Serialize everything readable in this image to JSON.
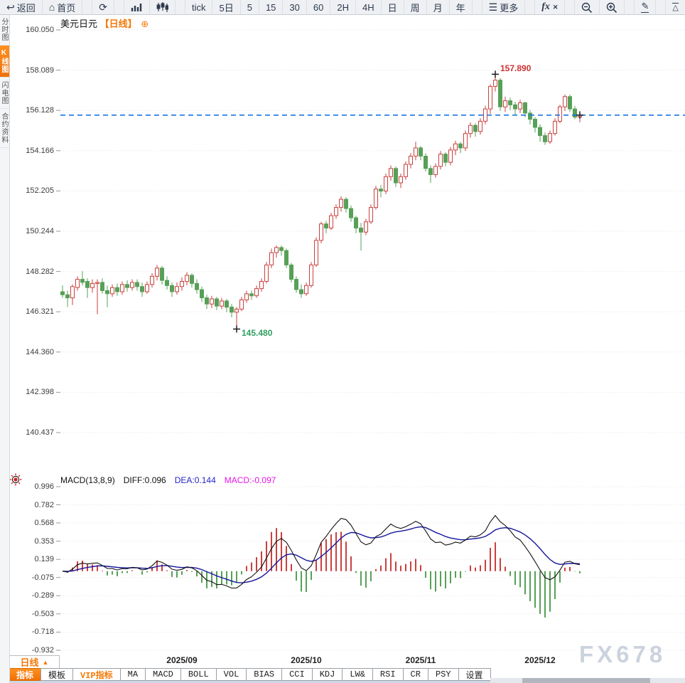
{
  "toolbar": {
    "groups": [
      {
        "items": [
          {
            "name": "back-button",
            "icon": "back-icon",
            "glyph": "↩",
            "label": "返回"
          },
          {
            "name": "home-button",
            "icon": "home-icon",
            "glyph": "⌂",
            "label": "首页"
          }
        ]
      },
      {
        "items": [
          {
            "name": "refresh-button",
            "icon": "refresh-icon",
            "glyph": "⟳",
            "label": ""
          }
        ]
      },
      {
        "items": [
          {
            "name": "line-chart-button",
            "icon": "bar-chart-icon",
            "svg": "bars",
            "label": ""
          },
          {
            "name": "candlestick-button",
            "icon": "candlestick-icon",
            "svg": "candles",
            "label": ""
          }
        ]
      },
      {
        "items": [
          {
            "name": "period-tick-button",
            "label": "tick"
          },
          {
            "name": "period-5d-button",
            "label": "5日"
          },
          {
            "name": "period-5-button",
            "label": "5"
          },
          {
            "name": "period-15-button",
            "label": "15"
          },
          {
            "name": "period-30-button",
            "label": "30"
          },
          {
            "name": "period-60-button",
            "label": "60"
          },
          {
            "name": "period-2h-button",
            "label": "2H"
          },
          {
            "name": "period-4h-button",
            "label": "4H"
          },
          {
            "name": "period-day-button",
            "label": "日"
          },
          {
            "name": "period-week-button",
            "label": "周"
          },
          {
            "name": "period-month-button",
            "label": "月"
          },
          {
            "name": "period-year-button",
            "label": "年"
          }
        ]
      },
      {
        "items": [
          {
            "name": "more-button",
            "icon": "menu-icon",
            "glyph": "☰",
            "label": "更多"
          }
        ]
      },
      {
        "items": [
          {
            "name": "indicator-fx-button",
            "icon": "fx-icon",
            "svg": "fx",
            "label": ""
          }
        ]
      },
      {
        "items": [
          {
            "name": "zoom-out-button",
            "icon": "zoom-out-icon",
            "svg": "zoomout",
            "label": ""
          },
          {
            "name": "zoom-in-button",
            "icon": "zoom-in-icon",
            "svg": "zoomin",
            "label": ""
          }
        ]
      },
      {
        "items": [
          {
            "name": "draw-button",
            "icon": "pencil-icon",
            "svg": "pencil",
            "label": ""
          }
        ]
      },
      {
        "items": [
          {
            "name": "to-high-button",
            "icon": "triangle-up-icon",
            "svg": "triup",
            "label": ""
          },
          {
            "name": "to-low-button",
            "icon": "triangle-down-icon",
            "svg": "tridown",
            "label": ""
          }
        ]
      }
    ]
  },
  "sidebar": {
    "items": [
      {
        "name": "sidebar-item-time-chart",
        "label": "分时图",
        "active": false
      },
      {
        "name": "sidebar-item-kline-chart",
        "label": "K线图",
        "active": true
      },
      {
        "name": "sidebar-item-lightning-chart",
        "label": "闪电图",
        "active": false
      },
      {
        "name": "sidebar-item-contract-info",
        "label": "合约资料",
        "active": false
      }
    ]
  },
  "chart_header": {
    "symbol": "美元日元",
    "period_tag": "【日线】",
    "add_icon": "⊕"
  },
  "macd": {
    "header": {
      "title": "MACD(13,8,9)",
      "diff": "DIFF:0.096",
      "dea": "DEA:0.144",
      "macd": "MACD:-0.097"
    },
    "params": [
      13,
      8,
      9
    ],
    "diff_value": 0.096,
    "dea_value": 0.144,
    "macd_value": -0.097,
    "y_axis_labels": [
      0.996,
      0.782,
      0.568,
      0.353,
      0.139,
      -0.075,
      -0.289,
      -0.503,
      -0.718,
      -0.932
    ]
  },
  "bottom": {
    "period_selector": "日线",
    "period_arrow": "▲",
    "tabs": [
      {
        "name": "tab-indicators",
        "label": "指标",
        "active": true,
        "vip": false
      },
      {
        "name": "tab-templates",
        "label": "模板",
        "active": false,
        "vip": false
      },
      {
        "name": "tab-vip-indicators",
        "label": "VIP指标",
        "active": false,
        "vip": true
      },
      {
        "name": "tab-ma",
        "label": "MA",
        "active": false,
        "vip": false
      },
      {
        "name": "tab-macd",
        "label": "MACD",
        "active": false,
        "vip": false
      },
      {
        "name": "tab-boll",
        "label": "BOLL",
        "active": false,
        "vip": false
      },
      {
        "name": "tab-vol",
        "label": "VOL",
        "active": false,
        "vip": false
      },
      {
        "name": "tab-bias",
        "label": "BIAS",
        "active": false,
        "vip": false
      },
      {
        "name": "tab-cci",
        "label": "CCI",
        "active": false,
        "vip": false
      },
      {
        "name": "tab-kdj",
        "label": "KDJ",
        "active": false,
        "vip": false
      },
      {
        "name": "tab-lw",
        "label": "LW&",
        "active": false,
        "vip": false
      },
      {
        "name": "tab-rsi",
        "label": "RSI",
        "active": false,
        "vip": false
      },
      {
        "name": "tab-cr",
        "label": "CR",
        "active": false,
        "vip": false
      },
      {
        "name": "tab-psy",
        "label": "PSY",
        "active": false,
        "vip": false
      },
      {
        "name": "tab-settings",
        "label": "设置",
        "active": false,
        "vip": false
      }
    ]
  },
  "watermark": "FX678",
  "chart_data": {
    "type": "candlestick",
    "symbol": "美元日元",
    "period": "日线",
    "y_axis_labels": [
      160.05,
      158.089,
      156.128,
      154.166,
      152.205,
      150.244,
      148.282,
      146.321,
      144.36,
      142.398,
      140.437
    ],
    "x_axis_labels": [
      {
        "label": "2025/09",
        "index": 24
      },
      {
        "label": "2025/10",
        "index": 49
      },
      {
        "label": "2025/11",
        "index": 72
      },
      {
        "label": "2025/12",
        "index": 96
      }
    ],
    "current_price": 155.9,
    "annotations": {
      "high": {
        "label": "157.890",
        "value": 157.89,
        "index": 87
      },
      "low": {
        "label": "145.480",
        "value": 145.48,
        "index": 35
      },
      "last": {
        "value": 155.9,
        "index": 104
      }
    },
    "colors": {
      "up": "#c9403e",
      "down": "#57a057",
      "dashed_line": "#1877e0",
      "grid": "#eedcdc",
      "diff_line": "#111111",
      "dea_line": "#15159e",
      "hist_pos": "#c9403e",
      "hist_neg": "#57a057",
      "accent_orange": "#f57a0a",
      "high_text": "#cc3333",
      "low_text": "#2f9e5f"
    },
    "candles": [
      [
        147.3,
        147.6,
        147.0,
        147.15
      ],
      [
        147.15,
        147.35,
        146.55,
        147.0
      ],
      [
        147.0,
        147.65,
        146.65,
        147.55
      ],
      [
        147.5,
        148.05,
        147.35,
        147.9
      ],
      [
        147.9,
        148.3,
        147.6,
        147.75
      ],
      [
        147.8,
        147.95,
        147.0,
        147.5
      ],
      [
        147.5,
        147.9,
        147.25,
        147.7
      ],
      [
        147.7,
        147.9,
        146.2,
        147.75
      ],
      [
        147.75,
        147.95,
        147.2,
        147.35
      ],
      [
        147.35,
        147.6,
        146.55,
        147.2
      ],
      [
        147.2,
        147.65,
        147.05,
        147.5
      ],
      [
        147.5,
        147.7,
        147.1,
        147.3
      ],
      [
        147.3,
        147.8,
        147.15,
        147.65
      ],
      [
        147.65,
        147.85,
        147.3,
        147.5
      ],
      [
        147.5,
        147.9,
        147.35,
        147.75
      ],
      [
        147.75,
        147.9,
        147.35,
        147.55
      ],
      [
        147.55,
        147.75,
        147.05,
        147.3
      ],
      [
        147.3,
        147.8,
        147.2,
        147.65
      ],
      [
        147.65,
        148.2,
        147.5,
        148.05
      ],
      [
        148.05,
        148.6,
        147.85,
        148.45
      ],
      [
        148.45,
        148.55,
        147.65,
        147.85
      ],
      [
        147.85,
        148.05,
        147.4,
        147.6
      ],
      [
        147.6,
        147.75,
        147.05,
        147.3
      ],
      [
        147.3,
        147.75,
        147.15,
        147.55
      ],
      [
        147.55,
        148.0,
        147.35,
        147.8
      ],
      [
        147.8,
        148.25,
        147.6,
        148.1
      ],
      [
        148.1,
        148.2,
        147.5,
        147.7
      ],
      [
        147.7,
        147.9,
        147.2,
        147.4
      ],
      [
        147.4,
        147.55,
        146.8,
        147.0
      ],
      [
        147.0,
        147.15,
        146.45,
        146.7
      ],
      [
        146.7,
        147.1,
        146.5,
        146.95
      ],
      [
        146.95,
        147.05,
        146.4,
        146.6
      ],
      [
        146.6,
        147.0,
        146.45,
        146.85
      ],
      [
        146.85,
        146.95,
        146.3,
        146.55
      ],
      [
        146.55,
        146.7,
        146.05,
        146.3
      ],
      [
        146.3,
        146.55,
        145.48,
        146.45
      ],
      [
        146.45,
        147.05,
        146.35,
        146.9
      ],
      [
        146.9,
        147.35,
        146.75,
        147.2
      ],
      [
        147.2,
        147.35,
        146.9,
        147.1
      ],
      [
        147.1,
        147.6,
        147.0,
        147.45
      ],
      [
        147.45,
        147.95,
        147.3,
        147.8
      ],
      [
        147.8,
        148.75,
        147.7,
        148.6
      ],
      [
        148.6,
        149.4,
        148.45,
        149.2
      ],
      [
        149.2,
        149.55,
        148.95,
        149.45
      ],
      [
        149.45,
        149.55,
        149.05,
        149.3
      ],
      [
        149.3,
        149.4,
        148.45,
        148.6
      ],
      [
        148.6,
        148.7,
        147.75,
        147.9
      ],
      [
        147.9,
        148.05,
        147.25,
        147.4
      ],
      [
        147.4,
        147.65,
        147.0,
        147.2
      ],
      [
        147.2,
        147.75,
        147.1,
        147.6
      ],
      [
        147.6,
        148.75,
        147.5,
        148.6
      ],
      [
        148.6,
        149.95,
        148.5,
        149.8
      ],
      [
        149.8,
        150.7,
        149.65,
        150.6
      ],
      [
        150.6,
        150.75,
        150.15,
        150.4
      ],
      [
        150.4,
        151.15,
        150.3,
        151.0
      ],
      [
        151.0,
        151.55,
        150.85,
        151.4
      ],
      [
        151.4,
        151.95,
        151.2,
        151.8
      ],
      [
        151.8,
        151.9,
        151.15,
        151.35
      ],
      [
        151.35,
        151.5,
        150.7,
        150.9
      ],
      [
        150.9,
        151.0,
        150.15,
        150.4
      ],
      [
        150.4,
        150.65,
        149.3,
        150.2
      ],
      [
        150.2,
        150.85,
        150.05,
        150.7
      ],
      [
        150.7,
        151.55,
        150.6,
        151.4
      ],
      [
        151.4,
        152.45,
        151.3,
        152.3
      ],
      [
        152.3,
        152.5,
        151.9,
        152.2
      ],
      [
        152.2,
        153.05,
        152.05,
        152.9
      ],
      [
        152.9,
        153.45,
        152.7,
        153.3
      ],
      [
        153.3,
        153.4,
        152.4,
        152.6
      ],
      [
        152.6,
        153.05,
        152.35,
        152.9
      ],
      [
        152.9,
        153.65,
        152.75,
        153.5
      ],
      [
        153.5,
        154.05,
        153.3,
        153.9
      ],
      [
        153.9,
        154.6,
        153.7,
        154.3
      ],
      [
        154.3,
        154.4,
        153.7,
        153.9
      ],
      [
        153.9,
        154.05,
        153.15,
        153.3
      ],
      [
        153.3,
        153.45,
        152.6,
        153.0
      ],
      [
        153.0,
        153.55,
        152.85,
        153.4
      ],
      [
        153.4,
        154.15,
        153.25,
        154.0
      ],
      [
        154.0,
        154.1,
        153.4,
        153.6
      ],
      [
        153.6,
        154.35,
        153.45,
        154.2
      ],
      [
        154.2,
        154.65,
        153.95,
        154.5
      ],
      [
        154.5,
        154.6,
        154.05,
        154.3
      ],
      [
        154.3,
        155.15,
        154.15,
        155.0
      ],
      [
        155.0,
        155.55,
        154.8,
        155.4
      ],
      [
        155.4,
        155.5,
        154.85,
        155.1
      ],
      [
        155.1,
        155.75,
        154.95,
        155.6
      ],
      [
        155.6,
        156.35,
        155.45,
        156.2
      ],
      [
        156.2,
        157.4,
        155.95,
        157.3
      ],
      [
        157.3,
        157.89,
        157.05,
        157.6
      ],
      [
        157.6,
        157.7,
        156.1,
        156.3
      ],
      [
        156.3,
        156.8,
        156.05,
        156.6
      ],
      [
        156.6,
        156.75,
        156.15,
        156.4
      ],
      [
        156.4,
        156.55,
        155.9,
        156.2
      ],
      [
        156.2,
        156.65,
        156.0,
        156.5
      ],
      [
        156.5,
        156.55,
        155.8,
        156.0
      ],
      [
        156.0,
        156.15,
        155.45,
        155.7
      ],
      [
        155.7,
        155.8,
        155.05,
        155.3
      ],
      [
        155.3,
        155.45,
        154.6,
        154.9
      ],
      [
        154.9,
        155.05,
        154.45,
        154.6
      ],
      [
        154.6,
        155.15,
        154.5,
        155.0
      ],
      [
        155.0,
        155.75,
        154.9,
        155.6
      ],
      [
        155.6,
        156.4,
        155.5,
        156.3
      ],
      [
        156.3,
        156.9,
        156.1,
        156.8
      ],
      [
        156.8,
        156.9,
        156.05,
        156.2
      ],
      [
        156.2,
        156.35,
        155.7,
        155.8
      ],
      [
        155.8,
        156.1,
        155.55,
        155.9
      ]
    ]
  }
}
